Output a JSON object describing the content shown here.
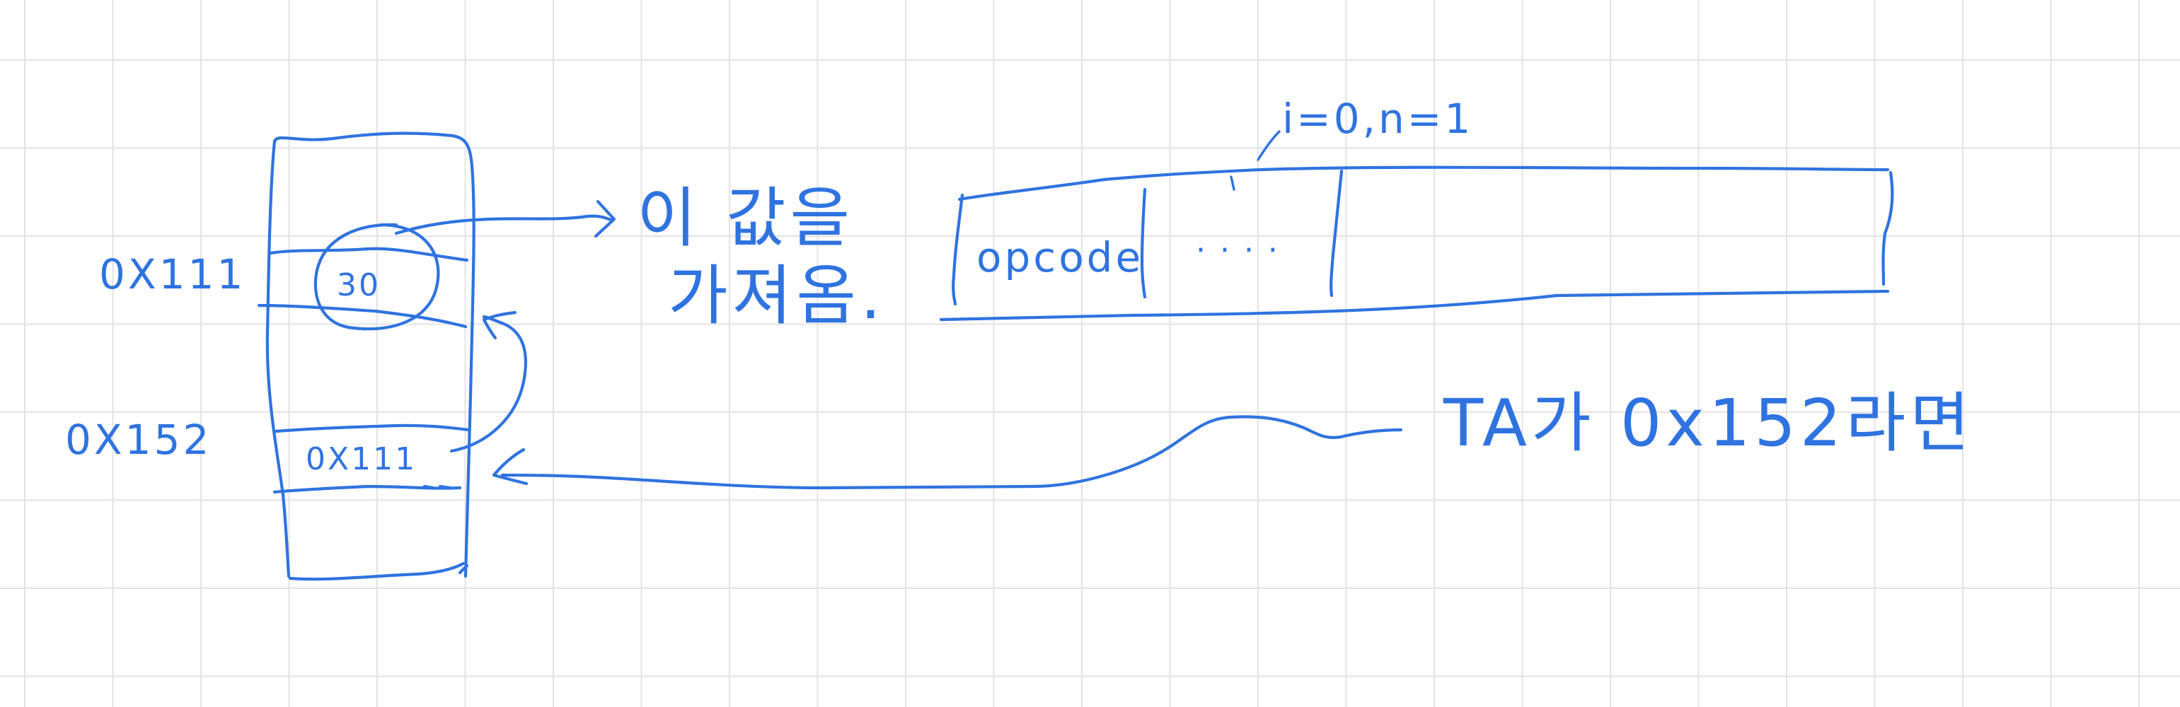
{
  "labels": {
    "addr_top": "0X111",
    "addr_bottom": "0X152",
    "cell_value": "30",
    "cell_pointer": "0X111",
    "note_value_line1": "이 값을",
    "note_value_line2": "가져옴.",
    "instr_opcode": "opcode",
    "instr_dots": ". . . .",
    "instr_note": "i=0,n=1",
    "ta_note": "TA가 0x152라면"
  },
  "colors": {
    "ink": "#2f73e0",
    "grid": "#e3e3e3",
    "background": "#ffffff"
  }
}
